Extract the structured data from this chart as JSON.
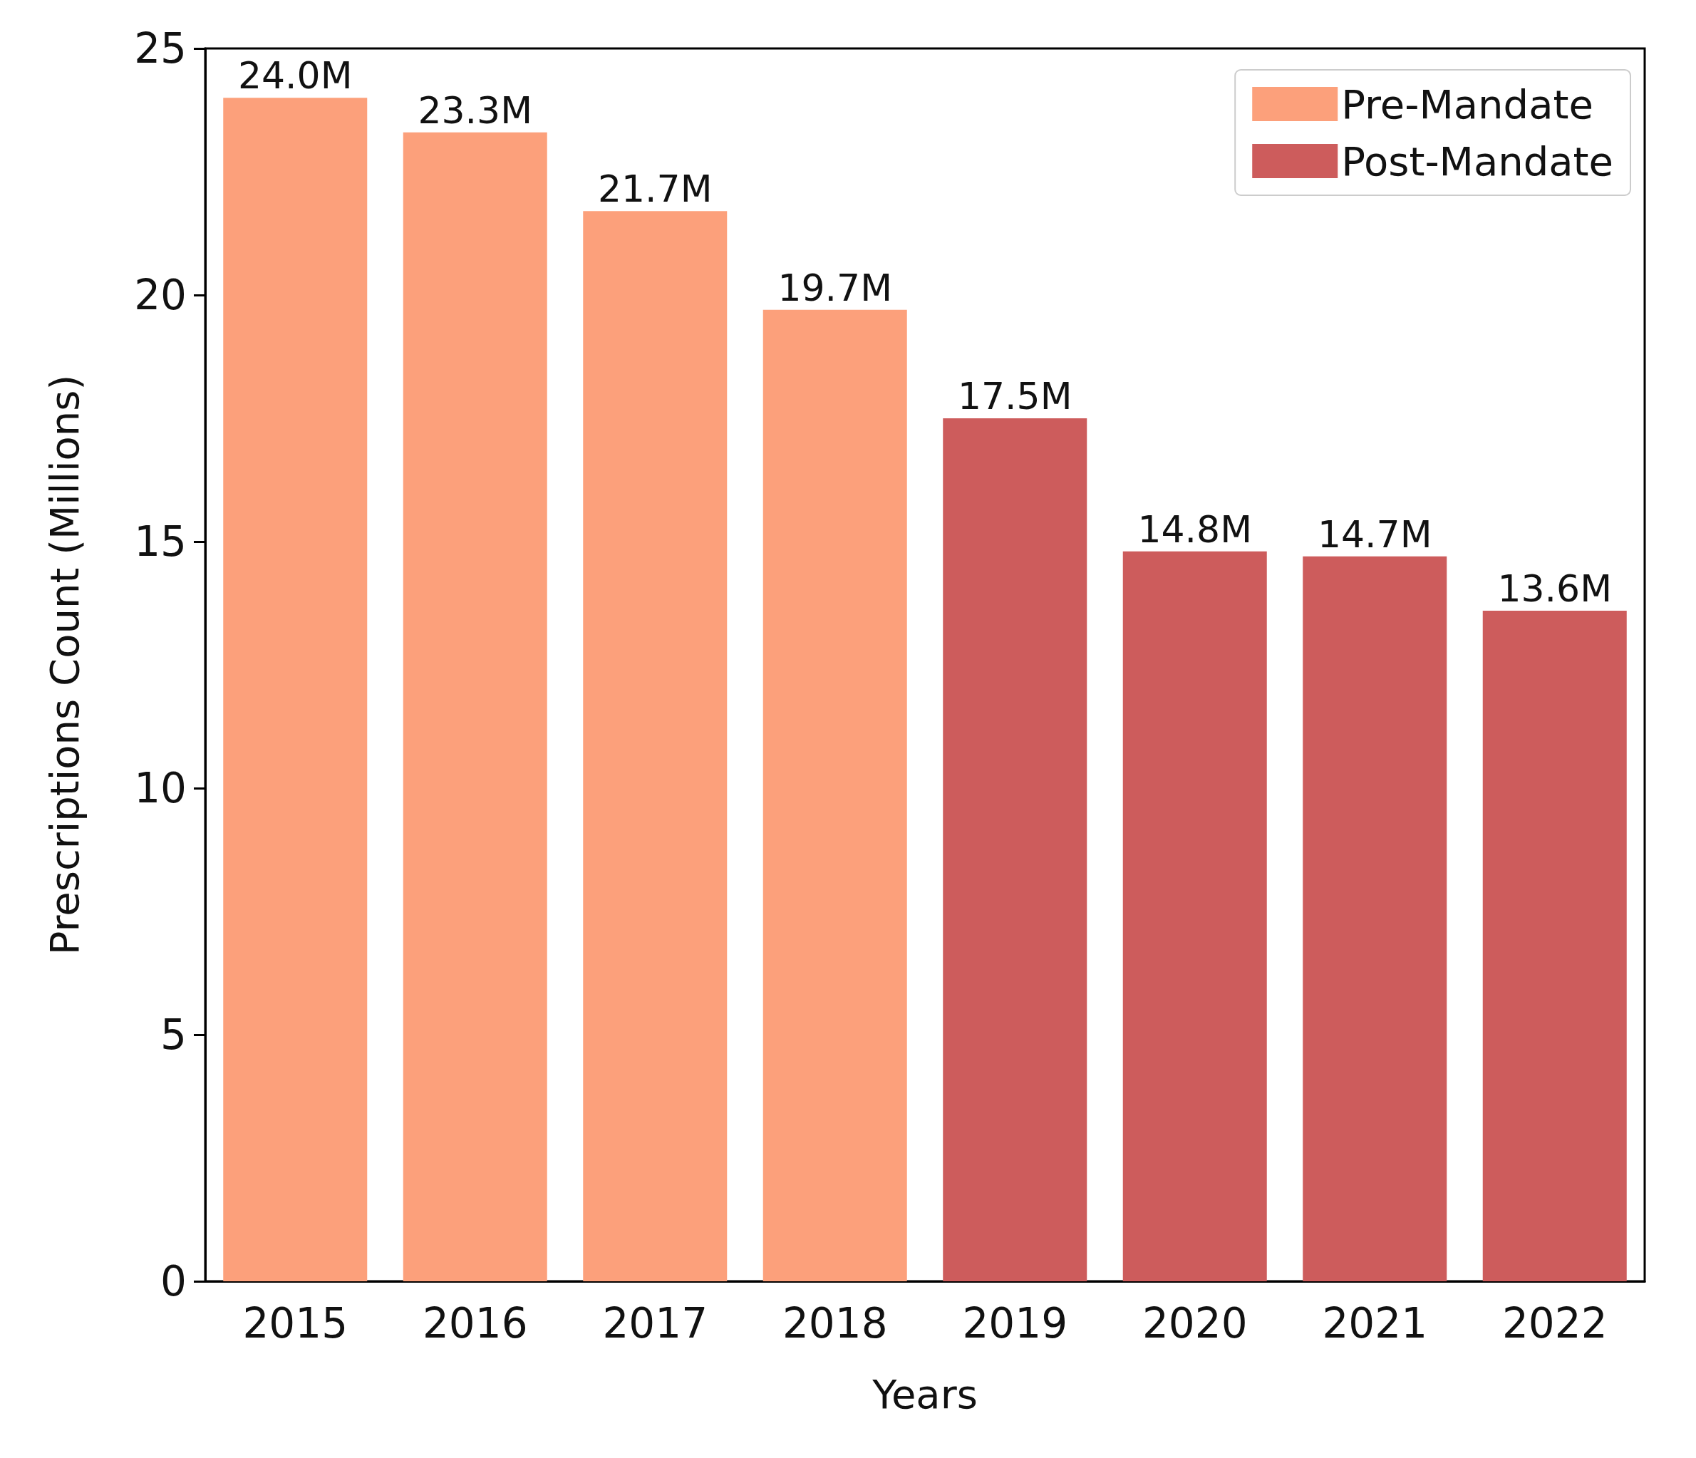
{
  "chart_data": {
    "type": "bar",
    "xlabel": "Years",
    "ylabel": "Prescriptions Count (Millions)",
    "categories": [
      "2015",
      "2016",
      "2017",
      "2018",
      "2019",
      "2020",
      "2021",
      "2022"
    ],
    "series": [
      {
        "name": "Pre-Mandate",
        "color": "#fca07b",
        "values": [
          24.0,
          23.3,
          21.7,
          19.7,
          null,
          null,
          null,
          null
        ],
        "value_labels": [
          "24.0M",
          "23.3M",
          "21.7M",
          "19.7M",
          null,
          null,
          null,
          null
        ]
      },
      {
        "name": "Post-Mandate",
        "color": "#cd5c5c",
        "values": [
          null,
          null,
          null,
          null,
          17.5,
          14.8,
          14.7,
          13.6
        ],
        "value_labels": [
          null,
          null,
          null,
          null,
          "17.5M",
          "14.8M",
          "14.7M",
          "13.6M"
        ]
      }
    ],
    "ylim": [
      0,
      25
    ],
    "yticks": [
      0,
      5,
      10,
      15,
      20,
      25
    ],
    "grid": false,
    "legend": "top right"
  }
}
